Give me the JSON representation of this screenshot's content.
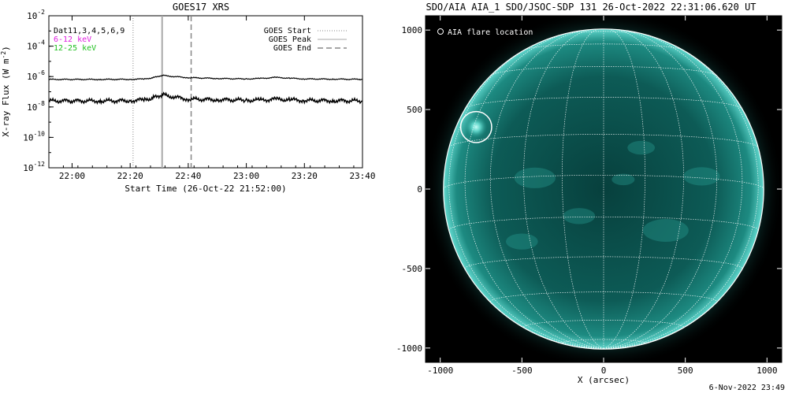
{
  "xrs_plot": {
    "title": "GOES17 XRS",
    "ylabel": "X-ray Flux (W m",
    "ylabel_unit_sup": "-2",
    "ylabel_close": ")",
    "xlabel": "Start Time (26-Oct-22 21:52:00)",
    "legend_left": [
      {
        "text": "Dat11,3,4,5,6,9",
        "color": "#000000"
      },
      {
        "text": "6-12 keV",
        "color": "#e020e0"
      },
      {
        "text": "12-25 keV",
        "color": "#20c020"
      }
    ],
    "legend_right": [
      {
        "text": "GOES Start",
        "style": "dotted"
      },
      {
        "text": "GOES Peak",
        "style": "solid"
      },
      {
        "text": "GOES End",
        "style": "dashed"
      }
    ],
    "chart_data": {
      "type": "line",
      "x_unit": "time (26-Oct-2022)",
      "xlim": [
        "21:52",
        "23:40"
      ],
      "x_ticks": [
        "22:00",
        "22:20",
        "22:40",
        "23:00",
        "23:20",
        "23:40"
      ],
      "yscale": "log",
      "ylim": [
        1e-12,
        0.01
      ],
      "y_tick_exponents": [
        "-12",
        "-10",
        "-8",
        "-6",
        "-4",
        "-2"
      ],
      "series": [
        {
          "name": "",
          "x": [
            "21:52",
            "22:00",
            "22:10",
            "22:20",
            "22:25",
            "22:28",
            "22:31",
            "22:35",
            "22:40",
            "22:50",
            "23:00",
            "23:05",
            "23:10",
            "23:15",
            "23:20",
            "23:30",
            "23:40"
          ],
          "values": [
            6.5e-07,
            6.5e-07,
            6.5e-07,
            6.6e-07,
            7e-07,
            8.5e-07,
            1.2e-06,
            1e-06,
            8.5e-07,
            7.5e-07,
            7e-07,
            7.5e-07,
            8.8e-07,
            7.8e-07,
            7e-07,
            6.8e-07,
            6.6e-07
          ]
        },
        {
          "name": "",
          "x": [
            "21:52",
            "22:00",
            "22:10",
            "22:20",
            "22:25",
            "22:28",
            "22:31",
            "22:35",
            "22:40",
            "22:50",
            "23:00",
            "23:05",
            "23:10",
            "23:15",
            "23:20",
            "23:30",
            "23:40"
          ],
          "values": [
            2.5e-08,
            2.5e-08,
            2.5e-08,
            2.6e-08,
            3e-08,
            4e-08,
            6.5e-08,
            4.5e-08,
            3.3e-08,
            3e-08,
            2.8e-08,
            2.8e-08,
            3.2e-08,
            3e-08,
            2.7e-08,
            2.6e-08,
            2.5e-08
          ]
        }
      ],
      "markers": [
        {
          "label": "GOES Start",
          "x": "22:21",
          "style": "dotted"
        },
        {
          "label": "GOES Peak",
          "x": "22:31",
          "style": "solid"
        },
        {
          "label": "GOES End",
          "x": "22:41",
          "style": "dashed"
        }
      ]
    }
  },
  "aia_image": {
    "title": "SDO/AIA AIA_1 SDO/JSOC-SDP 131 26-Oct-2022 22:31:06.620 UT",
    "legend": "AIA flare location",
    "xlabel": "X (arcsec)",
    "x_ticks": [
      "-1000",
      "-500",
      "0",
      "500",
      "1000"
    ],
    "y_ticks": [
      "1000",
      "500",
      "0",
      "-500",
      "-1000"
    ],
    "xlim": [
      -1090,
      1090
    ],
    "ylim": [
      -1090,
      1090
    ],
    "solar_radius_arcsec": 980,
    "flare_location": {
      "x": -780,
      "y": 390,
      "radius": 95
    },
    "colors": {
      "disk": "#0b5a55",
      "limb": "#3fc4b8",
      "active": "#7af0e6",
      "grid": "#ffffff"
    }
  },
  "footer": {
    "date": "6-Nov-2022 23:49"
  }
}
